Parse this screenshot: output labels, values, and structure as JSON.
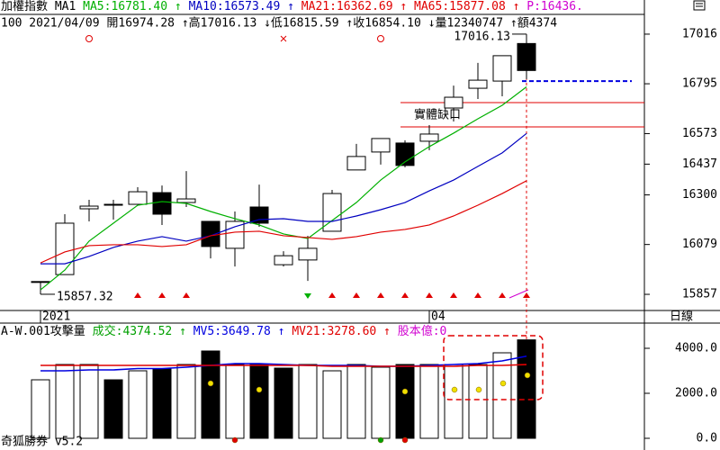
{
  "chart_data": [
    {
      "type": "candlestick",
      "title": "加權指數",
      "subtitle": "MA1",
      "info": "100 2021/04/09 開16974.28 ↑高17016.13 ↓低16815.59 ↑收16854.10 ↓量12340747 ↑額4374",
      "header_extra": [
        {
          "text": "MA65:15877.08 ↑",
          "color": "#e00000"
        },
        {
          "text": "P:16436.",
          "color": "#d000d0"
        }
      ],
      "categories": [
        "2021",
        null,
        null,
        null,
        null,
        null,
        null,
        null,
        null,
        null,
        null,
        null,
        null,
        null,
        null,
        null,
        "04",
        null,
        null,
        null,
        null
      ],
      "open": [
        15914,
        15945,
        16238,
        16254,
        16258,
        16310,
        16266,
        16182,
        16062,
        16246,
        15989,
        16010,
        16138,
        16411,
        16491,
        16531,
        16539,
        16687,
        16775,
        16807,
        16974.28
      ],
      "high": [
        15914,
        16214,
        16278,
        16278,
        16334,
        16342,
        16406,
        16182,
        16226,
        16346,
        16049,
        16118,
        16322,
        16527,
        16551,
        16543,
        16611,
        16787,
        16888,
        16920,
        17016.13
      ],
      "low": [
        15857.32,
        15945,
        16182,
        16190,
        16258,
        16166,
        16246,
        16017,
        15981,
        16158,
        15981,
        15917,
        16138,
        16411,
        16435,
        16423,
        16499,
        16627,
        16727,
        16739,
        16815.59
      ],
      "close": [
        15914,
        16174,
        16250,
        16258,
        16314,
        16214,
        16282,
        16070,
        16182,
        16174,
        16029,
        16062,
        16306,
        16471,
        16551,
        16431,
        16571,
        16735,
        16811,
        16920,
        16854.1
      ],
      "up_color": "#ffffff",
      "down_color": "#000000",
      "series": [
        {
          "label": "MA5:16781.40 ↑",
          "color": "#00b000",
          "values": [
            15877,
            15965,
            16094,
            16174,
            16254,
            16270,
            16262,
            16226,
            16194,
            16166,
            16126,
            16106,
            16186,
            16266,
            16366,
            16447,
            16515,
            16575,
            16639,
            16699,
            16781.4
          ]
        },
        {
          "label": "MA10:16573.49 ↑",
          "color": "#0000c0",
          "values": [
            15993,
            15993,
            16026,
            16066,
            16094,
            16114,
            16094,
            16118,
            16158,
            16190,
            16194,
            16182,
            16182,
            16206,
            16234,
            16266,
            16318,
            16366,
            16427,
            16487,
            16573.49
          ]
        },
        {
          "label": "MA21:16362.69 ↑",
          "color": "#e00000",
          "values": [
            15997,
            16046,
            16074,
            16078,
            16078,
            16070,
            16078,
            16118,
            16134,
            16138,
            16118,
            16110,
            16102,
            16114,
            16134,
            16146,
            16166,
            16206,
            16254,
            16306,
            16362.69
          ]
        }
      ],
      "high_label": "17016.13",
      "low_label": "15857.32",
      "gap": {
        "label": "實體缺口",
        "levels": [
          16711,
          16603
        ],
        "color": "#e00000"
      },
      "dashed_level": 16807,
      "period": "日線",
      "ylim": [
        15785,
        17108
      ],
      "yticks": [
        17016,
        16795,
        16573,
        16437,
        16300,
        16079,
        15857
      ]
    },
    {
      "type": "bar",
      "title": "A-W.001攻擊量",
      "header_items": [
        {
          "text": "成交:4374.52 ↑",
          "color": "#00a000"
        },
        {
          "text": "股本億:0",
          "color": "#d000d0"
        }
      ],
      "values": [
        2600,
        3280,
        3280,
        2600,
        3000,
        3080,
        3280,
        3880,
        3280,
        3280,
        3120,
        3280,
        3000,
        3280,
        3160,
        3280,
        3280,
        3280,
        3280,
        3800,
        4374.52
      ],
      "bar_colors": [
        "#ffffff",
        "#ffffff",
        "#ffffff",
        "#000000",
        "#ffffff",
        "#000000",
        "#ffffff",
        "#000000",
        "#ffffff",
        "#000000",
        "#000000",
        "#ffffff",
        "#ffffff",
        "#ffffff",
        "#ffffff",
        "#000000",
        "#ffffff",
        "#ffffff",
        "#ffffff",
        "#ffffff",
        "#000000"
      ],
      "series": [
        {
          "label": "MV5:3649.78 ↑",
          "color": "#0000e0",
          "values": [
            3000,
            3000,
            3040,
            3040,
            3100,
            3100,
            3160,
            3240,
            3320,
            3320,
            3280,
            3240,
            3240,
            3240,
            3200,
            3200,
            3240,
            3280,
            3320,
            3440,
            3649.78
          ]
        },
        {
          "label": "MV21:3278.60 ↑",
          "color": "#e00000",
          "values": [
            3240,
            3240,
            3240,
            3240,
            3240,
            3240,
            3240,
            3240,
            3240,
            3240,
            3240,
            3240,
            3200,
            3200,
            3200,
            3200,
            3200,
            3200,
            3240,
            3240,
            3278.6
          ]
        }
      ],
      "footer": "奇狐勝券 v5.2",
      "ylim": [
        0,
        5080
      ],
      "yticks": [
        {
          "value": 4000,
          "label": "4000.0"
        },
        {
          "value": 2000,
          "label": "2000.0"
        },
        {
          "value": 0,
          "label": "0.0"
        }
      ]
    }
  ]
}
